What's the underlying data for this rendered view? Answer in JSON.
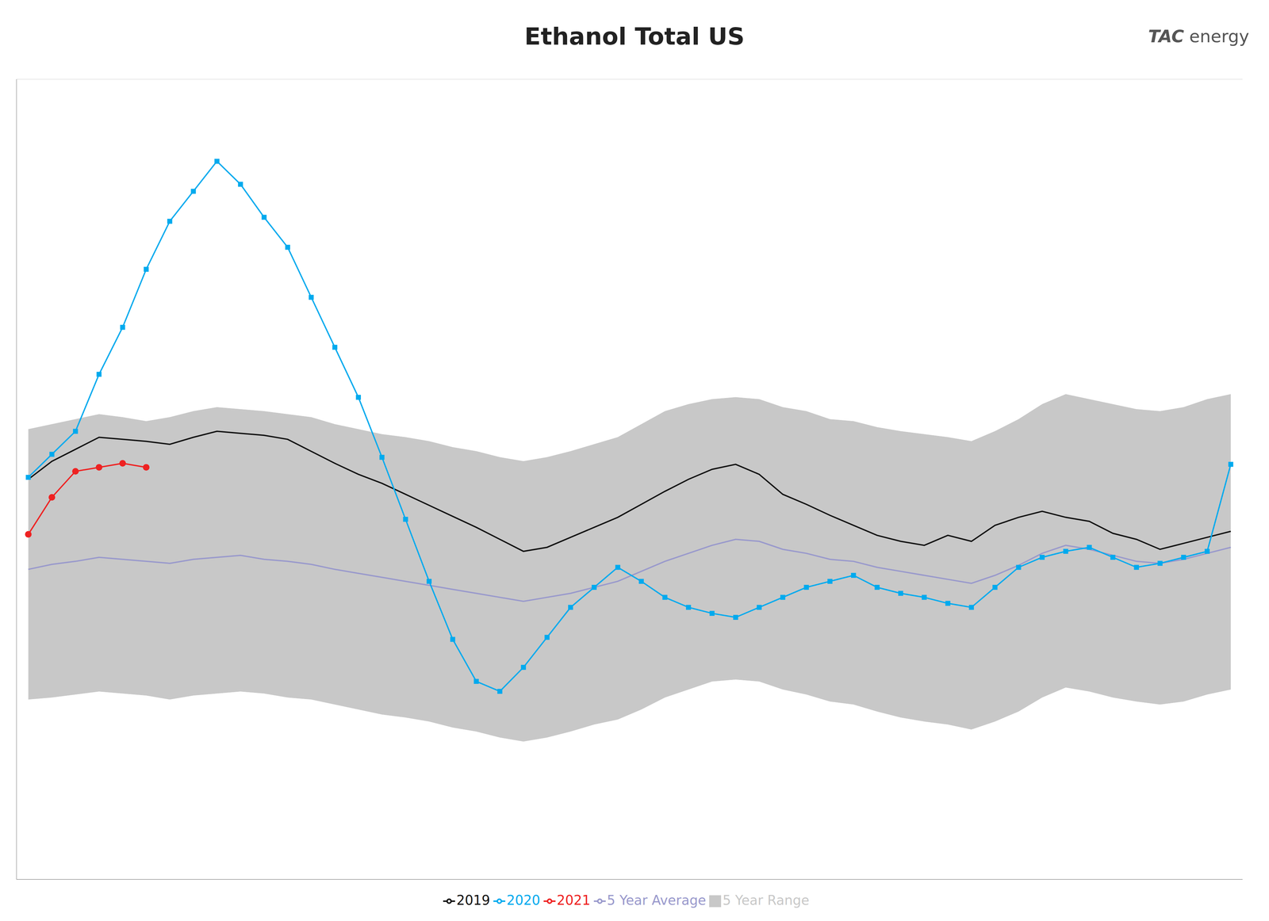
{
  "chart_data": {
    "type": "line",
    "title": "Ethanol Total US",
    "annotations": [
      "TAC",
      "energy"
    ],
    "x": [
      1,
      2,
      3,
      4,
      5,
      6,
      7,
      8,
      9,
      10,
      11,
      12,
      13,
      14,
      15,
      16,
      17,
      18,
      19,
      20,
      21,
      22,
      23,
      24,
      25,
      26,
      27,
      28,
      29,
      30,
      31,
      32,
      33,
      34,
      35,
      36,
      37,
      38,
      39,
      40,
      41,
      42,
      43,
      44,
      45,
      46,
      47,
      48,
      49,
      50,
      51,
      52
    ],
    "xlim": [
      0.5,
      52.5
    ],
    "ylim": [
      600,
      1400
    ],
    "yticks": [
      700,
      900,
      1100,
      1300
    ],
    "grid": true,
    "tick_labels": false,
    "legend": "bottom",
    "series": [
      {
        "name": "5 Year Range",
        "type": "range",
        "color": "#c8c8c8",
        "values": [
          [
            780,
            1050
          ],
          [
            782,
            1055
          ],
          [
            785,
            1060
          ],
          [
            788,
            1065
          ],
          [
            786,
            1062
          ],
          [
            784,
            1058
          ],
          [
            780,
            1062
          ],
          [
            784,
            1068
          ],
          [
            786,
            1072
          ],
          [
            788,
            1070
          ],
          [
            786,
            1068
          ],
          [
            782,
            1065
          ],
          [
            780,
            1062
          ],
          [
            775,
            1055
          ],
          [
            770,
            1050
          ],
          [
            765,
            1045
          ],
          [
            762,
            1042
          ],
          [
            758,
            1038
          ],
          [
            752,
            1032
          ],
          [
            748,
            1028
          ],
          [
            742,
            1022
          ],
          [
            738,
            1018
          ],
          [
            742,
            1022
          ],
          [
            748,
            1028
          ],
          [
            755,
            1035
          ],
          [
            760,
            1042
          ],
          [
            770,
            1055
          ],
          [
            782,
            1068
          ],
          [
            790,
            1075
          ],
          [
            798,
            1080
          ],
          [
            800,
            1082
          ],
          [
            798,
            1080
          ],
          [
            790,
            1072
          ],
          [
            785,
            1068
          ],
          [
            778,
            1060
          ],
          [
            775,
            1058
          ],
          [
            768,
            1052
          ],
          [
            762,
            1048
          ],
          [
            758,
            1045
          ],
          [
            755,
            1042
          ],
          [
            750,
            1038
          ],
          [
            758,
            1048
          ],
          [
            768,
            1060
          ],
          [
            782,
            1075
          ],
          [
            792,
            1085
          ],
          [
            788,
            1080
          ],
          [
            782,
            1075
          ],
          [
            778,
            1070
          ],
          [
            775,
            1068
          ],
          [
            778,
            1072
          ],
          [
            785,
            1080
          ],
          [
            790,
            1085
          ]
        ]
      },
      {
        "name": "5 Year Average",
        "type": "line",
        "color": "#9999cc",
        "values": [
          910,
          915,
          918,
          922,
          920,
          918,
          916,
          920,
          922,
          924,
          920,
          918,
          915,
          910,
          906,
          902,
          898,
          894,
          890,
          886,
          882,
          878,
          882,
          886,
          892,
          898,
          908,
          918,
          926,
          934,
          940,
          938,
          930,
          926,
          920,
          918,
          912,
          908,
          904,
          900,
          896,
          904,
          914,
          926,
          934,
          930,
          924,
          918,
          916,
          920,
          926,
          932
        ]
      },
      {
        "name": "2019",
        "type": "line",
        "color": "#111111",
        "values": [
          1000,
          1018,
          1030,
          1042,
          1040,
          1038,
          1035,
          1042,
          1048,
          1046,
          1044,
          1040,
          1028,
          1016,
          1005,
          996,
          985,
          974,
          963,
          952,
          940,
          928,
          932,
          942,
          952,
          962,
          975,
          988,
          1000,
          1010,
          1015,
          1005,
          985,
          975,
          964,
          954,
          944,
          938,
          934,
          944,
          938,
          954,
          962,
          968,
          962,
          958,
          946,
          940,
          930,
          936,
          942,
          948
        ]
      },
      {
        "name": "2020",
        "type": "line",
        "color": "#00aaee",
        "marker": "square",
        "values": [
          1002,
          1025,
          1048,
          1105,
          1152,
          1210,
          1258,
          1288,
          1318,
          1295,
          1262,
          1232,
          1182,
          1132,
          1082,
          1022,
          960,
          898,
          840,
          798,
          788,
          812,
          842,
          872,
          892,
          912,
          898,
          882,
          872,
          866,
          862,
          872,
          882,
          892,
          898,
          904,
          892,
          886,
          882,
          876,
          872,
          892,
          912,
          922,
          928,
          932,
          922,
          912,
          916,
          922,
          928,
          1015
        ]
      },
      {
        "name": "2021",
        "type": "line",
        "color": "#ee2222",
        "marker": "circle",
        "values": [
          945,
          982,
          1008,
          1012,
          1016,
          1012,
          null,
          null,
          null,
          null,
          null,
          null,
          null,
          null,
          null,
          null,
          null,
          null,
          null,
          null,
          null,
          null,
          null,
          null,
          null,
          null,
          null,
          null,
          null,
          null,
          null,
          null,
          null,
          null,
          null,
          null,
          null,
          null,
          null,
          null,
          null,
          null,
          null,
          null,
          null,
          null,
          null,
          null,
          null,
          null,
          null,
          null
        ]
      }
    ]
  }
}
